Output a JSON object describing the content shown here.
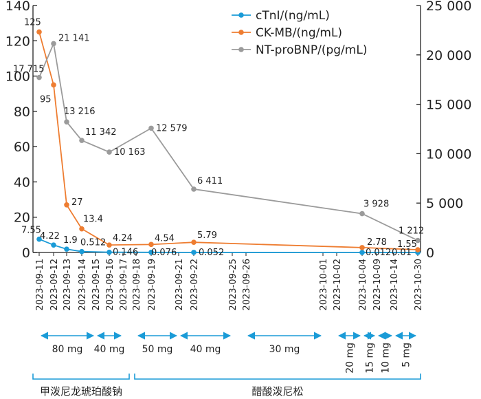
{
  "chart_data": {
    "type": "line",
    "x": [
      "2023-09-11",
      "2023-09-12",
      "2023-09-13",
      "2023-09-14",
      "2023-09-15",
      "2023-09-16",
      "2023-09-17",
      "2023-09-18",
      "2023-09-19",
      "2023-09-21",
      "2023-09-22",
      "2023-09-25",
      "2023-09-26",
      "2023-10-01",
      "2023-10-02",
      "2023-10-04",
      "2023-10-09",
      "2023-10-14",
      "2023-10-30"
    ],
    "left_axis": {
      "ylim": [
        0,
        140
      ],
      "ticks": [
        0,
        20,
        40,
        60,
        80,
        100,
        120,
        140
      ]
    },
    "right_axis": {
      "ylim": [
        0,
        25000
      ],
      "ticks": [
        0,
        5000,
        10000,
        15000,
        20000,
        25000
      ],
      "tick_labels": [
        "0",
        "5 000",
        "10 000",
        "15 000",
        "20 000",
        "25 000"
      ]
    },
    "series": [
      {
        "name": "cTnI/(ng/mL)",
        "axis": "left",
        "color": "#1a9bd7",
        "points": [
          {
            "x": "2023-09-11",
            "y": 7.55,
            "label": "7.55"
          },
          {
            "x": "2023-09-12",
            "y": 4.22,
            "label": "4.22"
          },
          {
            "x": "2023-09-13",
            "y": 1.9,
            "label": "1.9"
          },
          {
            "x": "2023-09-14",
            "y": 0.512,
            "label": "0.512"
          },
          {
            "x": "2023-09-16",
            "y": 0.146,
            "label": "0.146"
          },
          {
            "x": "2023-09-19",
            "y": 0.076,
            "label": "0.076"
          },
          {
            "x": "2023-09-22",
            "y": 0.052,
            "label": "0.052"
          },
          {
            "x": "2023-10-04",
            "y": 0.012,
            "label": "0.012"
          },
          {
            "x": "2023-10-30",
            "y": 0.01,
            "label": "0.01"
          }
        ]
      },
      {
        "name": "CK-MB/(ng/mL)",
        "axis": "left",
        "color": "#ee7d31",
        "points": [
          {
            "x": "2023-09-11",
            "y": 125,
            "label": "125"
          },
          {
            "x": "2023-09-12",
            "y": 95,
            "label": "95"
          },
          {
            "x": "2023-09-13",
            "y": 27,
            "label": "27"
          },
          {
            "x": "2023-09-14",
            "y": 13.4,
            "label": "13.4"
          },
          {
            "x": "2023-09-16",
            "y": 4.24,
            "label": "4.24"
          },
          {
            "x": "2023-09-19",
            "y": 4.54,
            "label": "4.54"
          },
          {
            "x": "2023-09-22",
            "y": 5.79,
            "label": "5.79"
          },
          {
            "x": "2023-10-04",
            "y": 2.78,
            "label": "2.78"
          },
          {
            "x": "2023-10-30",
            "y": 1.55,
            "label": "1.55"
          }
        ]
      },
      {
        "name": "NT-proBNP/(pg/mL)",
        "axis": "right",
        "color": "#9b9b9b",
        "points": [
          {
            "x": "2023-09-11",
            "y": 17715,
            "label": "17 715"
          },
          {
            "x": "2023-09-12",
            "y": 21141,
            "label": "21 141"
          },
          {
            "x": "2023-09-13",
            "y": 13216,
            "label": "13 216"
          },
          {
            "x": "2023-09-14",
            "y": 11342,
            "label": "11 342"
          },
          {
            "x": "2023-09-16",
            "y": 10163,
            "label": "10 163"
          },
          {
            "x": "2023-09-19",
            "y": 12579,
            "label": "12 579"
          },
          {
            "x": "2023-09-22",
            "y": 6411,
            "label": "6 411"
          },
          {
            "x": "2023-10-04",
            "y": 3928,
            "label": "3 928"
          },
          {
            "x": "2023-10-30",
            "y": 1212,
            "label": "1 212"
          }
        ]
      }
    ],
    "legend": {
      "placement": "top-right"
    },
    "grid": false,
    "doses": [
      {
        "label": "80 mg",
        "from": "2023-09-11",
        "to": "2023-09-15",
        "orientation": "horizontal"
      },
      {
        "label": "40 mg",
        "from": "2023-09-15",
        "to": "2023-09-17",
        "orientation": "horizontal"
      },
      {
        "label": "50 mg",
        "from": "2023-09-18",
        "to": "2023-09-21",
        "orientation": "horizontal"
      },
      {
        "label": "40 mg",
        "from": "2023-09-21",
        "to": "2023-09-25",
        "orientation": "horizontal"
      },
      {
        "label": "30 mg",
        "from": "2023-09-26",
        "to": "2023-10-01",
        "orientation": "horizontal"
      },
      {
        "label": "20 mg",
        "from": "2023-10-02",
        "to": "2023-10-04",
        "orientation": "vertical"
      },
      {
        "label": "15 mg",
        "from": "2023-10-04",
        "to": "2023-10-09",
        "orientation": "vertical"
      },
      {
        "label": "10 mg",
        "from": "2023-10-09",
        "to": "2023-10-14",
        "orientation": "vertical"
      },
      {
        "label": "5 mg",
        "from": "2023-10-14",
        "to": "2023-10-30",
        "orientation": "vertical"
      }
    ],
    "drugs": [
      {
        "label": "甲泼尼龙琥珀酸钠",
        "from": "2023-09-11",
        "to": "2023-09-17"
      },
      {
        "label": "醋酸泼尼松",
        "from": "2023-09-18",
        "to": "2023-10-30"
      }
    ]
  }
}
